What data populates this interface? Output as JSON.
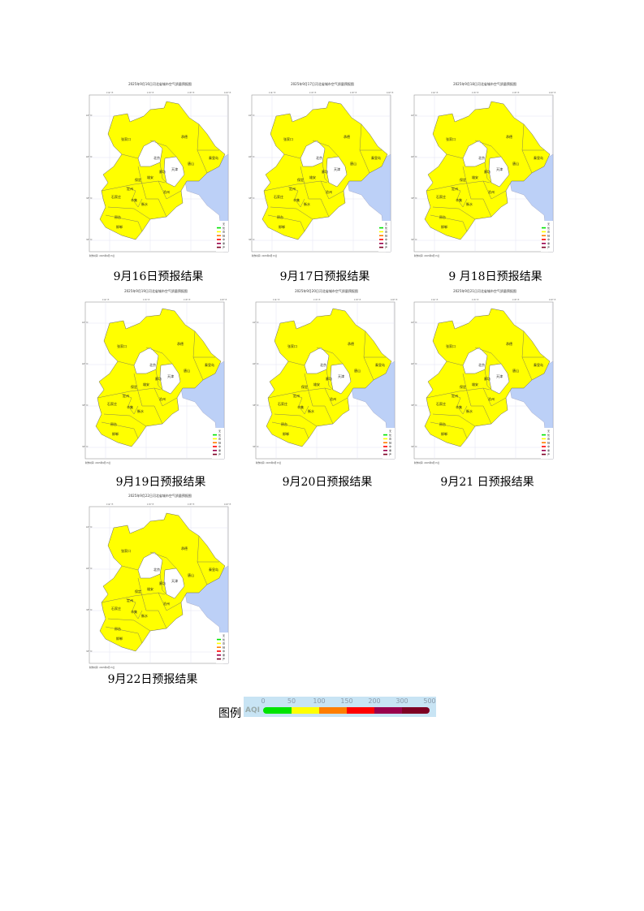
{
  "map_common": {
    "lon_ticks": [
      "114° E",
      "116° E",
      "118° E",
      "120° E"
    ],
    "lat_ticks": [
      "42° N",
      "40° N",
      "38° N",
      "36° N"
    ],
    "footer": "制作时间:  2025年9月15日",
    "cities": [
      "张家口",
      "承德",
      "秦皇岛",
      "北京",
      "天津",
      "唐山",
      "廊坊",
      "雄安",
      "保定",
      "定州",
      "石家庄",
      "辛集",
      "衡水",
      "沧州",
      "邢台",
      "邯郸"
    ],
    "legend": [
      {
        "label": "无",
        "color": "#ffffff"
      },
      {
        "label": "优",
        "color": "#00e400"
      },
      {
        "label": "良",
        "color": "#ffff00"
      },
      {
        "label": "轻",
        "color": "#ff7e00"
      },
      {
        "label": "中",
        "color": "#ff0000"
      },
      {
        "label": "重",
        "color": "#99004c"
      },
      {
        "label": "严",
        "color": "#7e0023"
      }
    ],
    "fill_color": "#ffff00",
    "sea_color": "#bcd0f7"
  },
  "maps": [
    {
      "title": "2025年9月16日河北省城市空气质量预报图",
      "caption": "9月16日预报结果"
    },
    {
      "title": "2025年9月17日河北省城市空气质量预报图",
      "caption": "9月17日预报结果"
    },
    {
      "title": "2025年9月18日河北省城市空气质量预报图",
      "caption": "9 月18日预报结果"
    },
    {
      "title": "2025年9月19日河北省城市空气质量预报图",
      "caption": "9月19日预报结果"
    },
    {
      "title": "2025年9月20日河北省城市空气质量预报图",
      "caption": "9月20日预报结果"
    },
    {
      "title": "2025年9月21日河北省城市空气质量预报图",
      "caption": "9月21 日预报结果"
    },
    {
      "title": "2025年9月22日河北省城市空气质量预报图",
      "caption": "9月22日预报结果"
    }
  ],
  "legend": {
    "label": "图例",
    "aqi_label": "AQI",
    "ticks": [
      "0",
      "50",
      "100",
      "150",
      "200",
      "300",
      "500"
    ],
    "colors": [
      "#00e400",
      "#ffff00",
      "#ff7e00",
      "#ff0000",
      "#99004c",
      "#7e0023"
    ]
  }
}
